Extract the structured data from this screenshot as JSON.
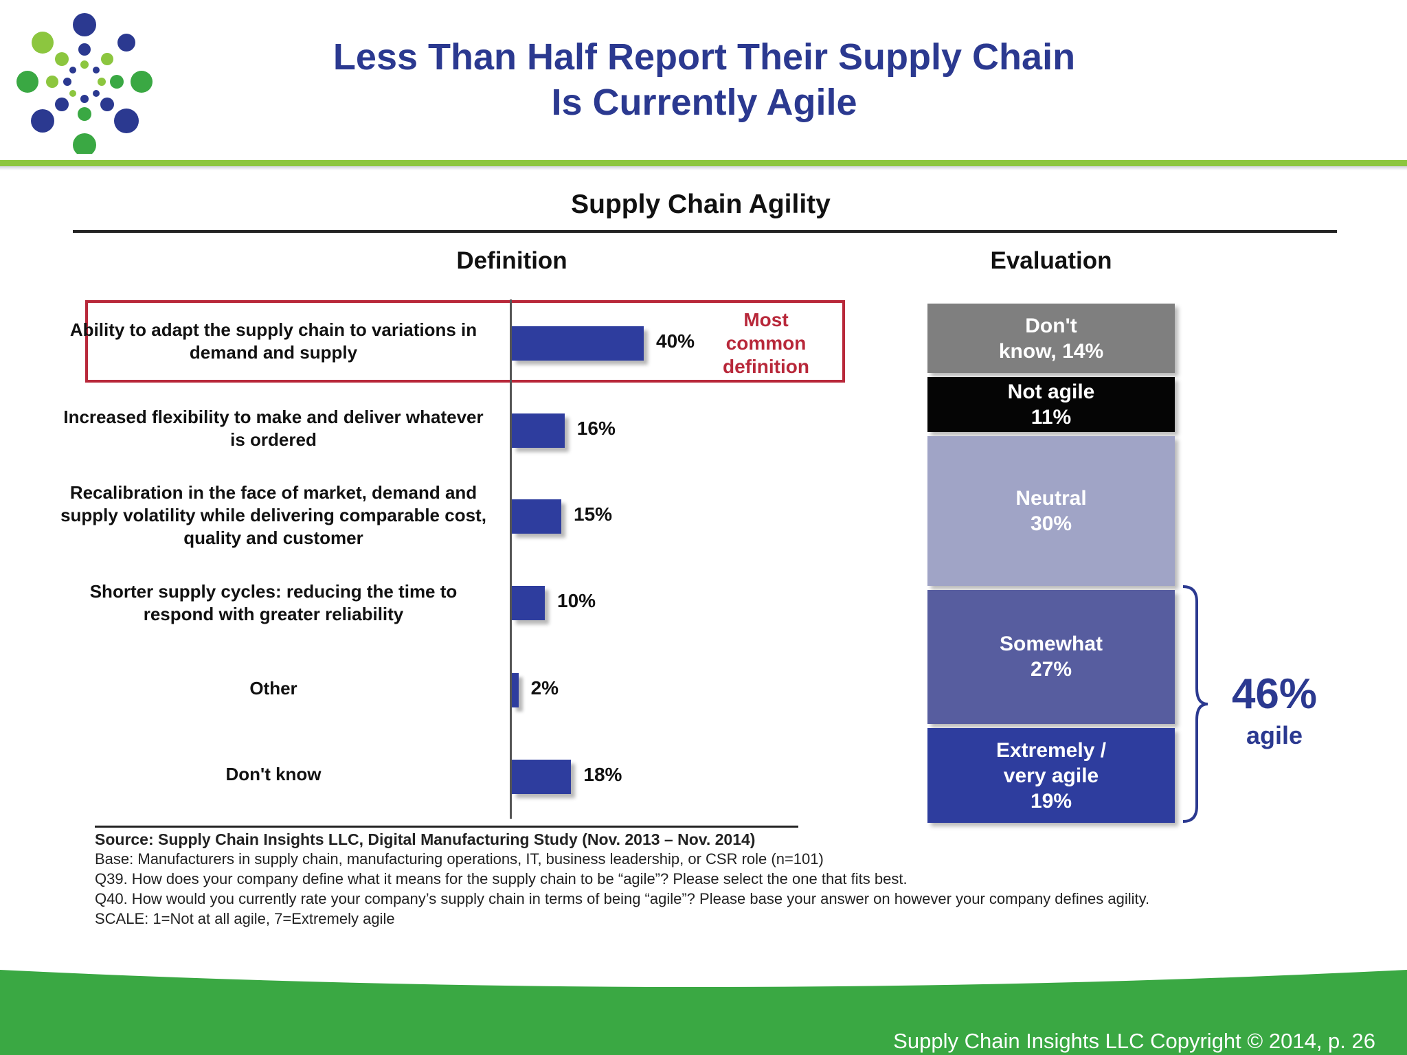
{
  "slide": {
    "title_line1": "Less Than Half Report Their Supply Chain",
    "title_line2": "Is Currently Agile",
    "footer": "Supply Chain Insights LLC Copyright © 2014, p. 26"
  },
  "colors": {
    "title_blue": "#2b3990",
    "accent_green": "#8cc63f",
    "band_green": "#3aa843",
    "bar_blue": "#2e3d9e",
    "highlight_red": "#b8283a"
  },
  "chart_data": [
    {
      "type": "bar",
      "orientation": "horizontal",
      "title": "Supply Chain Agility",
      "subtitle": "Definition",
      "categories": [
        "Ability to adapt the supply chain to variations in demand and supply",
        "Increased flexibility to make and deliver whatever is ordered",
        "Recalibration in the face of market, demand and supply volatility while delivering comparable cost, quality and customer",
        "Shorter supply cycles: reducing the time to respond with greater reliability",
        "Other",
        "Don't know"
      ],
      "values": [
        40,
        16,
        15,
        10,
        2,
        18
      ],
      "value_labels": [
        "40%",
        "16%",
        "15%",
        "10%",
        "2%",
        "18%"
      ],
      "annotation": "Most common definition",
      "xlim": [
        0,
        100
      ],
      "grid": false
    },
    {
      "type": "bar",
      "orientation": "stacked-vertical",
      "subtitle": "Evaluation",
      "segments": [
        {
          "label_lines": [
            "Don't",
            "know, 14%"
          ],
          "value": 14,
          "color": "#7f7f7f",
          "text_color": "#ffffff"
        },
        {
          "label_lines": [
            "Not agile",
            "11%"
          ],
          "value": 11,
          "color": "#050505",
          "text_color": "#ffffff"
        },
        {
          "label_lines": [
            "Neutral",
            "30%"
          ],
          "value": 30,
          "color": "#a0a4c6",
          "text_color": "#ffffff"
        },
        {
          "label_lines": [
            "Somewhat",
            "27%"
          ],
          "value": 27,
          "color": "#575d9f",
          "text_color": "#ffffff"
        },
        {
          "label_lines": [
            "Extremely /",
            "very agile",
            "19%"
          ],
          "value": 19,
          "color": "#2e3d9e",
          "text_color": "#ffffff"
        }
      ],
      "bracket_value": "46%",
      "bracket_label": "agile"
    }
  ],
  "notes": {
    "source": "Source:  Supply Chain Insights LLC, Digital Manufacturing Study (Nov. 2013 – Nov. 2014)",
    "base": "Base: Manufacturers in supply chain, manufacturing operations, IT, business leadership, or CSR role (n=101)",
    "q39": "Q39. How does your company define what it means for the supply chain to be “agile”?  Please select the one that fits best.",
    "q40": "Q40. How would you currently rate your company’s supply chain in terms of being “agile”?  Please base your answer on however your company defines agility.",
    "scale": "SCALE: 1=Not at all agile, 7=Extremely agile"
  }
}
